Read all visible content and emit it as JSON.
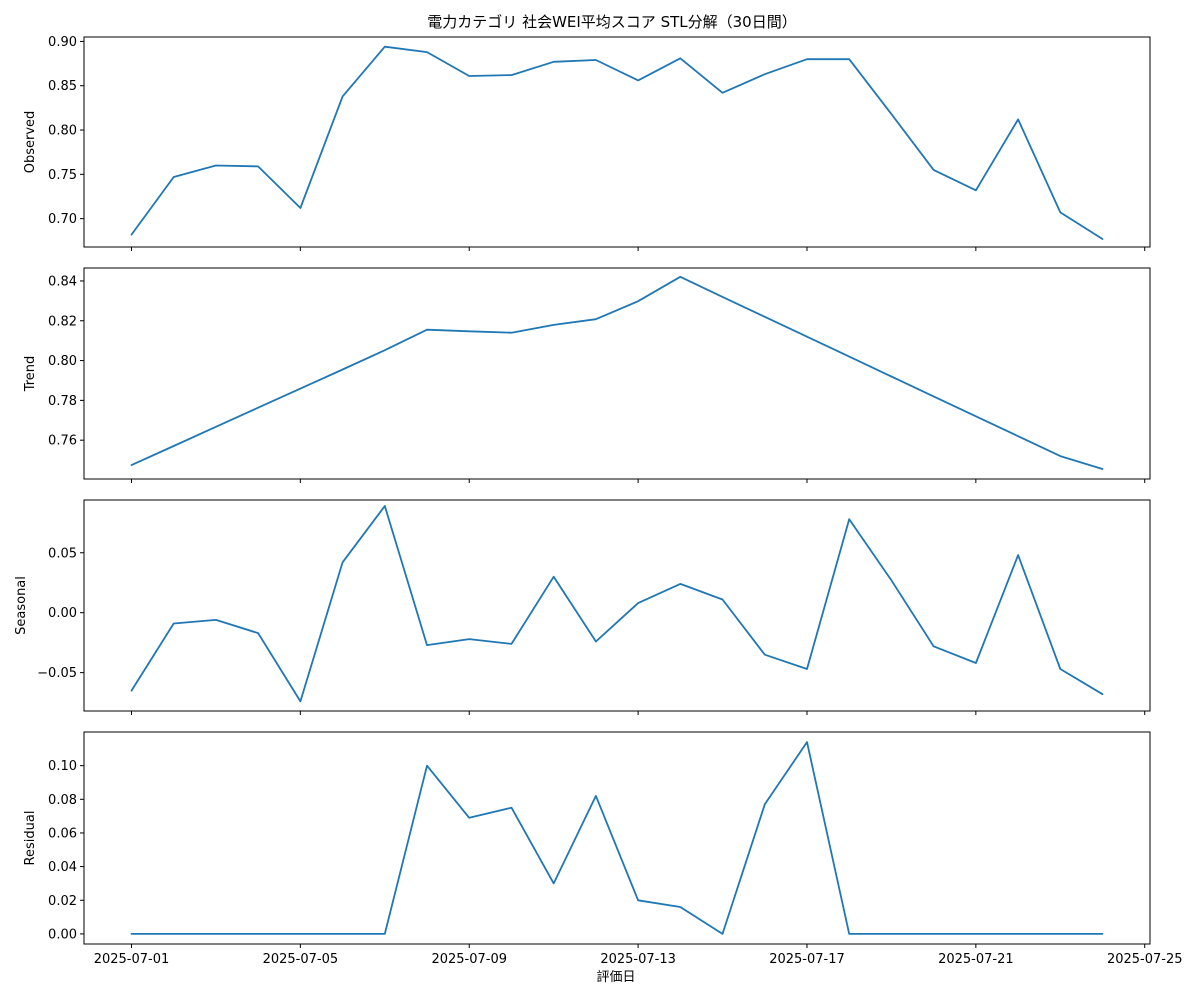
{
  "chart_data": {
    "type": "line",
    "title": "電力カテゴリ 社会WEI平均スコア STL分解（30日間）",
    "xlabel": "評価日",
    "line_color": "#1f77b4",
    "x_ticks": [
      "2025-07-01",
      "2025-07-05",
      "2025-07-09",
      "2025-07-13",
      "2025-07-17",
      "2025-07-21",
      "2025-07-25"
    ],
    "x": [
      "2025-07-01",
      "2025-07-02",
      "2025-07-03",
      "2025-07-04",
      "2025-07-05",
      "2025-07-06",
      "2025-07-07",
      "2025-07-08",
      "2025-07-09",
      "2025-07-10",
      "2025-07-11",
      "2025-07-12",
      "2025-07-13",
      "2025-07-14",
      "2025-07-15",
      "2025-07-16",
      "2025-07-17",
      "2025-07-18",
      "2025-07-19",
      "2025-07-20",
      "2025-07-21",
      "2025-07-22",
      "2025-07-23",
      "2025-07-24"
    ],
    "xlim": [
      "2025-06-29T21:00",
      "2025-07-25T03:00"
    ],
    "panels": [
      {
        "ylabel": "Observed",
        "ylim": [
          0.668,
          0.905
        ],
        "yticks": [
          0.7,
          0.75,
          0.8,
          0.85,
          0.9
        ],
        "tick_labels": [
          "0.70",
          "0.75",
          "0.80",
          "0.85",
          "0.90"
        ],
        "values": [
          0.682,
          0.747,
          0.76,
          0.759,
          0.712,
          0.838,
          0.894,
          0.888,
          0.861,
          0.862,
          0.877,
          0.879,
          0.856,
          0.881,
          0.842,
          0.863,
          0.88,
          0.88,
          0.818,
          0.755,
          0.732,
          0.812,
          0.707,
          0.677
        ]
      },
      {
        "ylabel": "Trend",
        "ylim": [
          0.7405,
          0.8465
        ],
        "yticks": [
          0.76,
          0.78,
          0.8,
          0.82,
          0.84
        ],
        "tick_labels": [
          "0.76",
          "0.78",
          "0.80",
          "0.82",
          "0.84"
        ],
        "values": [
          0.7475,
          0.7571,
          0.7667,
          0.7763,
          0.7859,
          0.7955,
          0.8052,
          0.8155,
          0.8147,
          0.814,
          0.8179,
          0.8208,
          0.8298,
          0.8421,
          0.832,
          0.822,
          0.812,
          0.802,
          0.792,
          0.782,
          0.772,
          0.762,
          0.752,
          0.7455
        ]
      },
      {
        "ylabel": "Seasonal",
        "ylim": [
          -0.082,
          0.094
        ],
        "yticks": [
          -0.05,
          0.0,
          0.05
        ],
        "tick_labels": [
          "−0.05",
          "0.00",
          "0.05"
        ],
        "values": [
          -0.065,
          -0.009,
          -0.006,
          -0.017,
          -0.074,
          0.042,
          0.089,
          -0.027,
          -0.022,
          -0.026,
          0.03,
          -0.024,
          0.008,
          0.024,
          0.011,
          -0.035,
          -0.047,
          0.078,
          0.027,
          -0.028,
          -0.042,
          0.048,
          -0.047,
          -0.068
        ]
      },
      {
        "ylabel": "Residual",
        "ylim": [
          -0.006,
          0.12
        ],
        "yticks": [
          0.0,
          0.02,
          0.04,
          0.06,
          0.08,
          0.1
        ],
        "tick_labels": [
          "0.00",
          "0.02",
          "0.04",
          "0.06",
          "0.08",
          "0.10"
        ],
        "values": [
          0,
          0,
          0,
          0,
          0,
          0,
          0,
          0.1,
          0.069,
          0.075,
          0.03,
          0.082,
          0.02,
          0.016,
          0,
          0.077,
          0.114,
          0,
          0,
          0,
          0,
          0,
          0,
          0
        ]
      }
    ]
  }
}
